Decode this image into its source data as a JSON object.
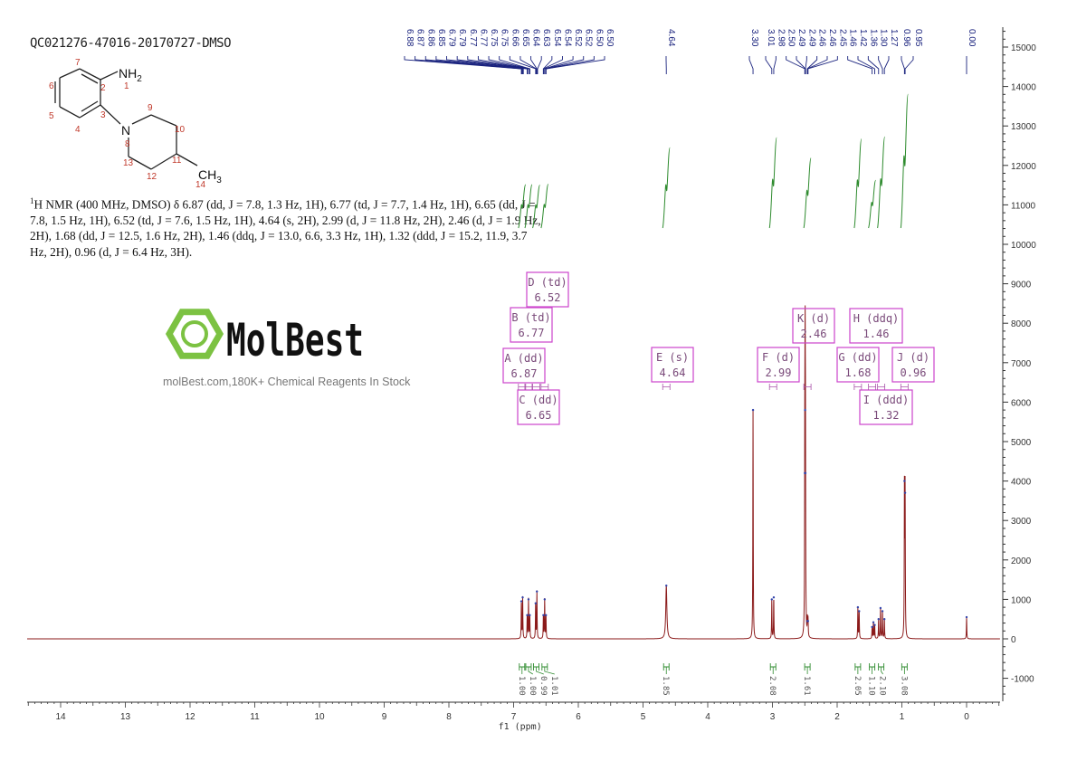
{
  "title": "QC021276-47016-20170727-DMSO",
  "description": {
    "prefix": "1",
    "text": "H NMR (400 MHz, DMSO) δ 6.87 (dd, J = 7.8, 1.3 Hz, 1H), 6.77 (td, J = 7.7, 1.4 Hz, 1H), 6.65 (dd, J = 7.8, 1.5 Hz, 1H), 6.52 (td, J = 7.6, 1.5 Hz, 1H), 4.64 (s, 2H), 2.99 (d, J = 11.8 Hz, 2H), 2.46 (d, J = 1.9 Hz, 2H), 1.68 (dd, J = 12.5, 1.6 Hz, 2H), 1.46 (ddq, J = 13.0, 6.6, 3.3 Hz, 1H), 1.32 (ddd, J = 15.2, 11.9, 3.7 Hz, 2H), 0.96 (d, J = 6.4 Hz, 3H)."
  },
  "molecule": {
    "labels": [
      "NH2",
      "N",
      "CH3"
    ],
    "atom_numbers": [
      "1",
      "2",
      "3",
      "4",
      "5",
      "6",
      "7",
      "8",
      "9",
      "10",
      "11",
      "12",
      "13",
      "14"
    ]
  },
  "watermark": {
    "brand": "MolBest",
    "tagline": "molBest.com,180K+ Chemical Reagents In Stock"
  },
  "colors": {
    "spectrum": "#8b1a1a",
    "peak_labels": "#1a237e",
    "integrals": "#2e8b2e",
    "multiplet_boxes": "#cc44cc",
    "watermark_green": "#7cc242"
  },
  "chart_data": {
    "type": "line",
    "xlabel": "f1 (ppm)",
    "xlim": [
      14.5,
      -0.5
    ],
    "x_reversed": true,
    "x_ticks": [
      "14",
      "13",
      "12",
      "11",
      "10",
      "9",
      "8",
      "7",
      "6",
      "5",
      "4",
      "3",
      "2",
      "1",
      "0"
    ],
    "ylim": [
      -1500,
      15500
    ],
    "y_ticks": [
      "15000",
      "14000",
      "13000",
      "12000",
      "11000",
      "10000",
      "9000",
      "8000",
      "7000",
      "6000",
      "5000",
      "4000",
      "3000",
      "2000",
      "1000",
      "0",
      "-1000"
    ],
    "y_axis_side": "right",
    "peak_labels_group1": [
      "6.88",
      "6.87",
      "6.86",
      "6.85",
      "6.79",
      "6.79",
      "6.77",
      "6.77",
      "6.75",
      "6.75",
      "6.66",
      "6.65",
      "6.64",
      "6.63",
      "6.54",
      "6.54",
      "6.52",
      "6.52",
      "6.50",
      "6.50"
    ],
    "peak_labels_group2": [
      "4.64"
    ],
    "peak_labels_group3": [
      "3.30"
    ],
    "peak_labels_group4": [
      "3.01",
      "2.98",
      "2.50",
      "2.49",
      "2.49",
      "2.46",
      "2.46",
      "2.45",
      "1.46",
      "1.42",
      "1.36",
      "1.30",
      "1.27"
    ],
    "peak_labels_group5": [
      "0.96",
      "0.95"
    ],
    "peak_labels_group6": [
      "0.00"
    ],
    "peaks": [
      [
        6.88,
        950
      ],
      [
        6.86,
        1050
      ],
      [
        6.79,
        600
      ],
      [
        6.77,
        1000
      ],
      [
        6.75,
        600
      ],
      [
        6.66,
        900
      ],
      [
        6.64,
        1200
      ],
      [
        6.54,
        600
      ],
      [
        6.52,
        1000
      ],
      [
        6.5,
        600
      ],
      [
        4.64,
        1350
      ],
      [
        3.3,
        5800
      ],
      [
        3.01,
        1000
      ],
      [
        2.98,
        1050
      ],
      [
        2.5,
        4200
      ],
      [
        2.495,
        5800
      ],
      [
        2.49,
        4200
      ],
      [
        2.46,
        450
      ],
      [
        2.45,
        450
      ],
      [
        1.68,
        800
      ],
      [
        1.66,
        700
      ],
      [
        1.46,
        300
      ],
      [
        1.44,
        420
      ],
      [
        1.42,
        350
      ],
      [
        1.36,
        500
      ],
      [
        1.33,
        780
      ],
      [
        1.3,
        700
      ],
      [
        1.27,
        500
      ],
      [
        0.96,
        4000
      ],
      [
        0.95,
        3700
      ],
      [
        0.0,
        550
      ]
    ],
    "integrals": [
      {
        "ppm": 6.87,
        "value": "1.00"
      },
      {
        "ppm": 6.77,
        "value": "1.00"
      },
      {
        "ppm": 6.65,
        "value": "0.99"
      },
      {
        "ppm": 6.52,
        "value": "1.01"
      },
      {
        "ppm": 4.64,
        "value": "1.85"
      },
      {
        "ppm": 2.99,
        "value": "2.08"
      },
      {
        "ppm": 2.46,
        "value": "1.61"
      },
      {
        "ppm": 1.68,
        "value": "2.05"
      },
      {
        "ppm": 1.46,
        "value": "1.10"
      },
      {
        "ppm": 1.32,
        "value": "2.10"
      },
      {
        "ppm": 0.96,
        "value": "3.08"
      }
    ],
    "multiplets": [
      {
        "id": "D",
        "type": "D (td)",
        "shift": "6.52"
      },
      {
        "id": "B",
        "type": "B (td)",
        "shift": "6.77"
      },
      {
        "id": "A",
        "type": "A (dd)",
        "shift": "6.87"
      },
      {
        "id": "C",
        "type": "C (dd)",
        "shift": "6.65"
      },
      {
        "id": "E",
        "type": "E (s)",
        "shift": "4.64"
      },
      {
        "id": "F",
        "type": "F (d)",
        "shift": "2.99"
      },
      {
        "id": "K",
        "type": "K (d)",
        "shift": "2.46"
      },
      {
        "id": "H",
        "type": "H (ddq)",
        "shift": "1.46"
      },
      {
        "id": "G",
        "type": "G (dd)",
        "shift": "1.68"
      },
      {
        "id": "J",
        "type": "J (d)",
        "shift": "0.96"
      },
      {
        "id": "I",
        "type": "I (ddd)",
        "shift": "1.32"
      }
    ]
  }
}
